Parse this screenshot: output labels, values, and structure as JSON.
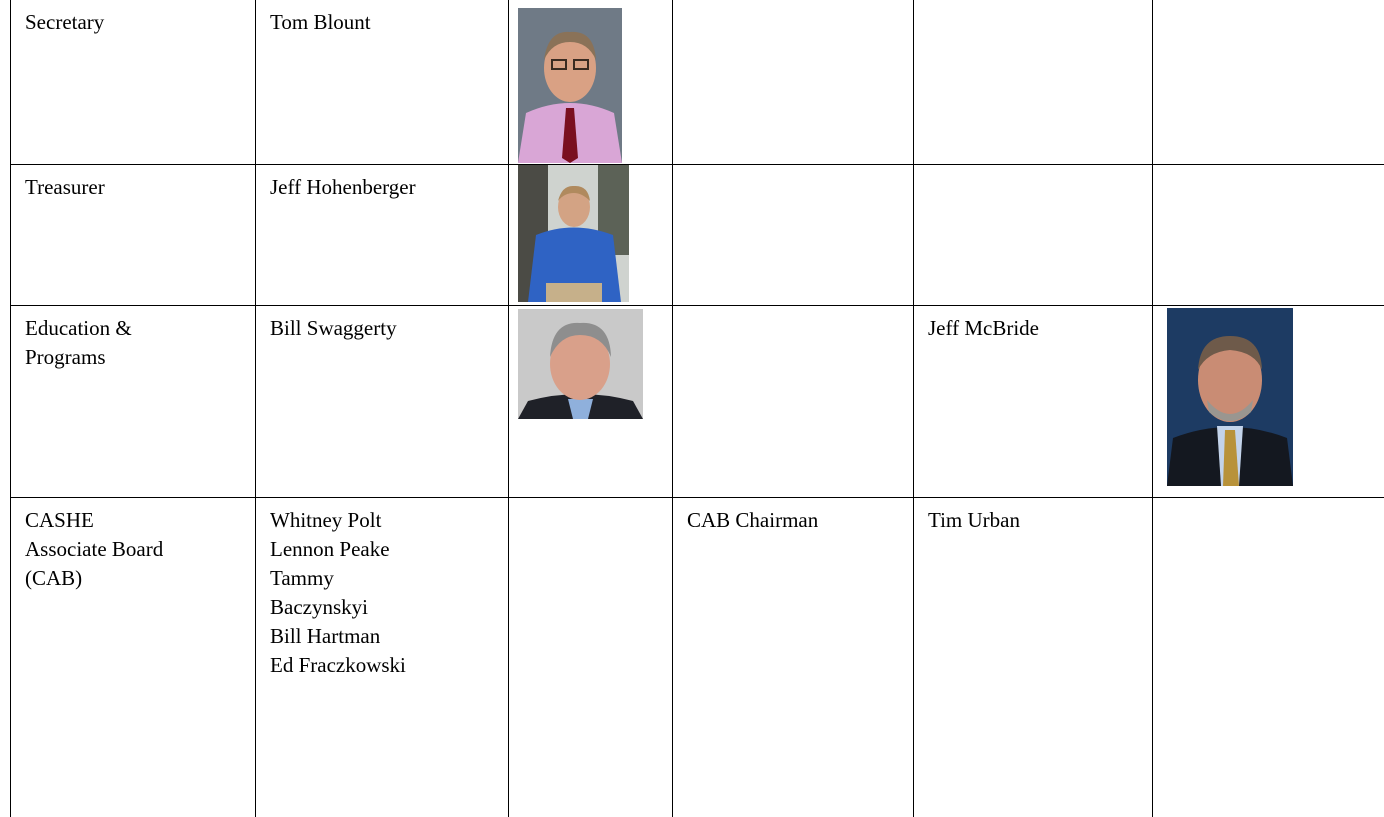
{
  "table": {
    "rows": [
      {
        "position": "Secretary",
        "members": [
          "Tom Blount"
        ]
      },
      {
        "position": "Treasurer",
        "members": [
          "Jeff Hohenberger"
        ]
      },
      {
        "position": "Education & Programs",
        "members": [
          "Bill Swaggerty"
        ],
        "co_chair": "Jeff McBride"
      },
      {
        "position": "CASHE Associate Board (CAB)",
        "members": [
          "Whitney Polt",
          "Lennon Peake",
          "Tammy",
          "Baczynskyi",
          "Bill Hartman",
          "Ed Fraczkowski"
        ],
        "role": "CAB Chairman",
        "co_chair": "Tim Urban"
      }
    ]
  }
}
